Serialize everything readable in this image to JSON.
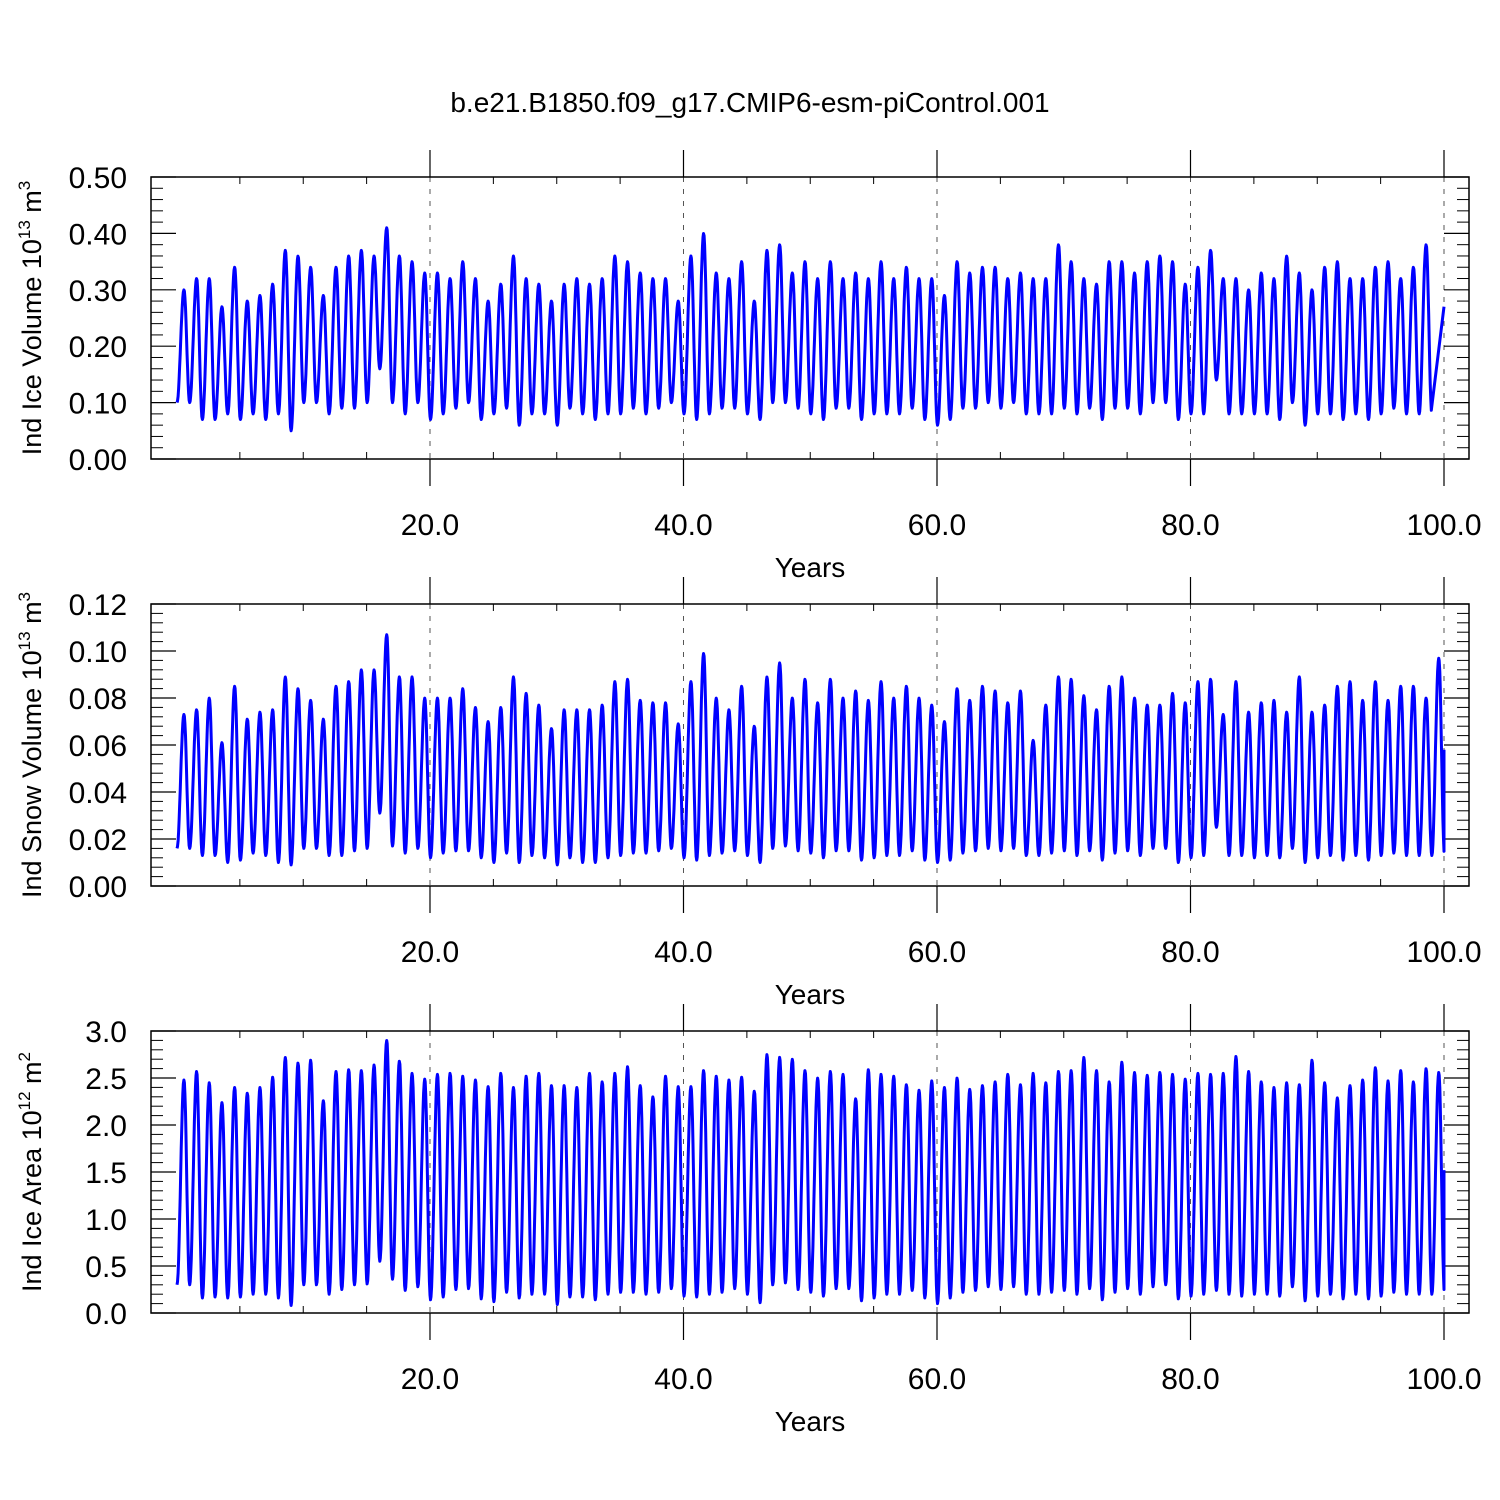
{
  "title": "b.e21.B1850.f09_g17.CMIP6-esm-piControl.001",
  "colors": {
    "series": "#0000ff",
    "axes": "#000000",
    "grid": "#555555"
  },
  "chart_data": [
    {
      "type": "line",
      "title": "b.e21.B1850.f09_g17.CMIP6-esm-piControl.001",
      "ylabel": {
        "prefix": "Ind Ice Volume 10",
        "exponent": "13",
        "unit": " m",
        "unit_exponent": "3"
      },
      "xlabel": "Years",
      "xlim": [
        0,
        101.9
      ],
      "ylim": [
        0,
        0.5
      ],
      "xticks": [
        20,
        40,
        60,
        80,
        100
      ],
      "xtick_labels": [
        "20.0",
        "40.0",
        "60.0",
        "80.0",
        "100.0"
      ],
      "yticks": [
        0,
        0.1,
        0.2,
        0.3,
        0.4,
        0.5
      ],
      "ytick_labels": [
        "0.00",
        "0.10",
        "0.20",
        "0.30",
        "0.40",
        "0.50"
      ],
      "x_start_year": 0.04,
      "x_end_year": 100,
      "series": [
        {
          "peaks": [
            0.3,
            0.32,
            0.32,
            0.27,
            0.34,
            0.28,
            0.29,
            0.31,
            0.37,
            0.36,
            0.34,
            0.29,
            0.34,
            0.36,
            0.37,
            0.36,
            0.41,
            0.36,
            0.35,
            0.33,
            0.33,
            0.32,
            0.35,
            0.32,
            0.28,
            0.31,
            0.36,
            0.32,
            0.31,
            0.28,
            0.31,
            0.32,
            0.31,
            0.32,
            0.36,
            0.35,
            0.33,
            0.32,
            0.32,
            0.28,
            0.36,
            0.4,
            0.33,
            0.32,
            0.35,
            0.28,
            0.37,
            0.38,
            0.33,
            0.35,
            0.32,
            0.35,
            0.32,
            0.33,
            0.32,
            0.35,
            0.32,
            0.34,
            0.32,
            0.32,
            0.29,
            0.35,
            0.33,
            0.34,
            0.34,
            0.32,
            0.33,
            0.32,
            0.32,
            0.38,
            0.35,
            0.32,
            0.31,
            0.35,
            0.35,
            0.33,
            0.35,
            0.36,
            0.35,
            0.31,
            0.34,
            0.37,
            0.32,
            0.32,
            0.3,
            0.33,
            0.32,
            0.36,
            0.33,
            0.3,
            0.34,
            0.35,
            0.32,
            0.32,
            0.34,
            0.35,
            0.32,
            0.34,
            0.38
          ],
          "troughs": [
            0.1,
            0.07,
            0.07,
            0.08,
            0.07,
            0.08,
            0.07,
            0.08,
            0.05,
            0.1,
            0.1,
            0.08,
            0.09,
            0.09,
            0.1,
            0.16,
            0.1,
            0.08,
            0.1,
            0.07,
            0.08,
            0.09,
            0.1,
            0.07,
            0.08,
            0.09,
            0.06,
            0.08,
            0.08,
            0.06,
            0.09,
            0.08,
            0.07,
            0.08,
            0.08,
            0.09,
            0.08,
            0.09,
            0.1,
            0.08,
            0.07,
            0.08,
            0.09,
            0.09,
            0.08,
            0.07,
            0.1,
            0.1,
            0.09,
            0.08,
            0.07,
            0.09,
            0.09,
            0.07,
            0.08,
            0.08,
            0.08,
            0.09,
            0.07,
            0.06,
            0.07,
            0.09,
            0.09,
            0.1,
            0.09,
            0.1,
            0.08,
            0.08,
            0.08,
            0.09,
            0.08,
            0.09,
            0.07,
            0.09,
            0.09,
            0.08,
            0.1,
            0.1,
            0.07,
            0.08,
            0.08,
            0.14,
            0.08,
            0.08,
            0.08,
            0.08,
            0.07,
            0.1,
            0.06,
            0.08,
            0.08,
            0.07,
            0.08,
            0.07,
            0.08,
            0.09,
            0.08,
            0.08,
            0.08
          ],
          "end_value": 0.27
        }
      ]
    },
    {
      "type": "line",
      "ylabel": {
        "prefix": "Ind Snow Volume 10",
        "exponent": "13",
        "unit": " m",
        "unit_exponent": "3"
      },
      "xlabel": "Years",
      "xlim": [
        0,
        101.9
      ],
      "ylim": [
        0,
        0.12
      ],
      "xticks": [
        20,
        40,
        60,
        80,
        100
      ],
      "xtick_labels": [
        "20.0",
        "40.0",
        "60.0",
        "80.0",
        "100.0"
      ],
      "yticks": [
        0,
        0.02,
        0.04,
        0.06,
        0.08,
        0.1,
        0.12
      ],
      "ytick_labels": [
        "0.00",
        "0.02",
        "0.04",
        "0.06",
        "0.08",
        "0.10",
        "0.12"
      ],
      "x_start_year": 0.04,
      "x_end_year": 100,
      "series": [
        {
          "peaks": [
            0.073,
            0.075,
            0.08,
            0.061,
            0.085,
            0.071,
            0.074,
            0.075,
            0.089,
            0.084,
            0.079,
            0.071,
            0.085,
            0.087,
            0.092,
            0.092,
            0.107,
            0.089,
            0.089,
            0.08,
            0.08,
            0.08,
            0.084,
            0.076,
            0.07,
            0.076,
            0.089,
            0.082,
            0.077,
            0.067,
            0.075,
            0.075,
            0.075,
            0.077,
            0.087,
            0.088,
            0.079,
            0.078,
            0.078,
            0.069,
            0.087,
            0.099,
            0.08,
            0.075,
            0.085,
            0.068,
            0.089,
            0.095,
            0.08,
            0.088,
            0.078,
            0.088,
            0.08,
            0.083,
            0.079,
            0.087,
            0.08,
            0.085,
            0.08,
            0.077,
            0.07,
            0.084,
            0.079,
            0.085,
            0.083,
            0.078,
            0.083,
            0.062,
            0.077,
            0.089,
            0.088,
            0.081,
            0.075,
            0.085,
            0.089,
            0.08,
            0.077,
            0.077,
            0.082,
            0.078,
            0.087,
            0.088,
            0.073,
            0.087,
            0.074,
            0.078,
            0.079,
            0.074,
            0.089,
            0.074,
            0.077,
            0.085,
            0.087,
            0.079,
            0.087,
            0.079,
            0.085,
            0.085,
            0.08,
            0.097
          ],
          "troughs": [
            0.016,
            0.013,
            0.013,
            0.01,
            0.011,
            0.014,
            0.013,
            0.01,
            0.009,
            0.016,
            0.016,
            0.013,
            0.013,
            0.015,
            0.016,
            0.031,
            0.017,
            0.014,
            0.016,
            0.012,
            0.014,
            0.015,
            0.015,
            0.012,
            0.01,
            0.014,
            0.01,
            0.013,
            0.012,
            0.009,
            0.012,
            0.01,
            0.01,
            0.012,
            0.013,
            0.014,
            0.014,
            0.015,
            0.016,
            0.012,
            0.011,
            0.013,
            0.014,
            0.015,
            0.013,
            0.01,
            0.016,
            0.017,
            0.015,
            0.014,
            0.012,
            0.015,
            0.015,
            0.011,
            0.012,
            0.013,
            0.013,
            0.015,
            0.011,
            0.01,
            0.011,
            0.014,
            0.015,
            0.016,
            0.015,
            0.016,
            0.013,
            0.013,
            0.014,
            0.015,
            0.013,
            0.015,
            0.011,
            0.014,
            0.015,
            0.013,
            0.016,
            0.016,
            0.01,
            0.012,
            0.013,
            0.025,
            0.013,
            0.013,
            0.012,
            0.013,
            0.012,
            0.016,
            0.01,
            0.012,
            0.013,
            0.011,
            0.013,
            0.011,
            0.013,
            0.014,
            0.013,
            0.013,
            0.013
          ],
          "end_value": 0.058
        }
      ]
    },
    {
      "type": "line",
      "ylabel": {
        "prefix": "Ind Ice Area 10",
        "exponent": "12",
        "unit": " m",
        "unit_exponent": "2"
      },
      "xlabel": "Years",
      "xlim": [
        0,
        101.9
      ],
      "ylim": [
        0,
        3.0
      ],
      "xticks": [
        20,
        40,
        60,
        80,
        100
      ],
      "xtick_labels": [
        "20.0",
        "40.0",
        "60.0",
        "80.0",
        "100.0"
      ],
      "yticks": [
        0,
        0.5,
        1.0,
        1.5,
        2.0,
        2.5,
        3.0
      ],
      "ytick_labels": [
        "0.0",
        "0.5",
        "1.0",
        "1.5",
        "2.0",
        "2.5",
        "3.0"
      ],
      "x_start_year": 0.04,
      "x_end_year": 100,
      "series": [
        {
          "peaks": [
            2.48,
            2.57,
            2.45,
            2.24,
            2.4,
            2.34,
            2.4,
            2.51,
            2.72,
            2.66,
            2.69,
            2.26,
            2.57,
            2.59,
            2.58,
            2.64,
            2.9,
            2.68,
            2.55,
            2.49,
            2.54,
            2.55,
            2.52,
            2.48,
            2.41,
            2.55,
            2.4,
            2.52,
            2.55,
            2.42,
            2.42,
            2.4,
            2.55,
            2.46,
            2.55,
            2.62,
            2.42,
            2.3,
            2.52,
            2.41,
            2.41,
            2.58,
            2.52,
            2.48,
            2.51,
            2.36,
            2.75,
            2.72,
            2.7,
            2.58,
            2.5,
            2.57,
            2.54,
            2.28,
            2.59,
            2.54,
            2.52,
            2.43,
            2.37,
            2.47,
            2.4,
            2.5,
            2.38,
            2.42,
            2.46,
            2.54,
            2.43,
            2.55,
            2.45,
            2.57,
            2.58,
            2.72,
            2.58,
            2.46,
            2.67,
            2.56,
            2.53,
            2.56,
            2.54,
            2.49,
            2.55,
            2.54,
            2.55,
            2.73,
            2.57,
            2.46,
            2.4,
            2.45,
            2.43,
            2.69,
            2.45,
            2.29,
            2.42,
            2.48,
            2.61,
            2.47,
            2.58,
            2.46,
            2.6,
            2.56
          ],
          "troughs": [
            0.3,
            0.16,
            0.17,
            0.16,
            0.17,
            0.2,
            0.2,
            0.16,
            0.08,
            0.3,
            0.3,
            0.2,
            0.25,
            0.3,
            0.31,
            0.55,
            0.36,
            0.24,
            0.28,
            0.14,
            0.17,
            0.25,
            0.26,
            0.15,
            0.12,
            0.22,
            0.16,
            0.2,
            0.2,
            0.09,
            0.17,
            0.17,
            0.14,
            0.2,
            0.22,
            0.22,
            0.2,
            0.22,
            0.26,
            0.18,
            0.17,
            0.2,
            0.22,
            0.26,
            0.2,
            0.11,
            0.3,
            0.32,
            0.25,
            0.22,
            0.18,
            0.26,
            0.26,
            0.13,
            0.16,
            0.2,
            0.2,
            0.24,
            0.16,
            0.1,
            0.16,
            0.22,
            0.24,
            0.28,
            0.25,
            0.28,
            0.2,
            0.2,
            0.22,
            0.24,
            0.2,
            0.26,
            0.14,
            0.22,
            0.26,
            0.2,
            0.28,
            0.3,
            0.15,
            0.18,
            0.2,
            0.24,
            0.2,
            0.18,
            0.2,
            0.2,
            0.18,
            0.28,
            0.13,
            0.18,
            0.2,
            0.15,
            0.2,
            0.15,
            0.18,
            0.22,
            0.2,
            0.2,
            0.2
          ],
          "end_value": 1.52
        }
      ]
    }
  ]
}
